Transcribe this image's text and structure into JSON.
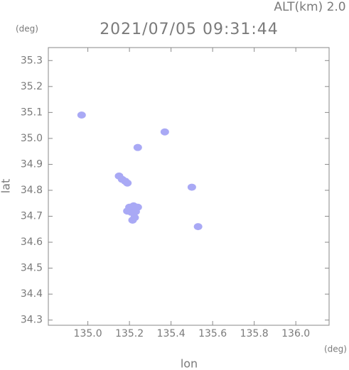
{
  "chart_data": {
    "type": "scatter",
    "title": "2021/07/05 09:31:44",
    "subtitle": "ALT(km) 2.0",
    "x_label": "lon",
    "y_label": "lat",
    "x_unit": "(deg)",
    "y_unit": "(deg)",
    "xlim": [
      134.81,
      136.16
    ],
    "ylim": [
      34.28,
      35.35
    ],
    "xticks": [
      {
        "value": 135.0,
        "label": "135.0"
      },
      135.2,
      135.4,
      135.6,
      135.8,
      {
        "value": 136.0,
        "label": "136.0"
      }
    ],
    "yticks": [
      34.3,
      34.4,
      34.5,
      34.6,
      34.7,
      34.8,
      34.9,
      {
        "value": 35.0,
        "label": "35.0"
      },
      35.1,
      35.2,
      35.3
    ],
    "color": "#a9a9f5",
    "x": [
      134.97,
      135.37,
      135.24,
      135.15,
      135.165,
      135.18,
      135.19,
      135.5,
      135.2,
      135.22,
      135.24,
      135.19,
      135.21,
      135.23,
      135.225,
      135.215,
      135.53
    ],
    "y": [
      35.09,
      35.025,
      34.965,
      34.855,
      34.842,
      34.835,
      34.828,
      34.812,
      34.735,
      34.74,
      34.735,
      34.72,
      34.715,
      34.718,
      34.695,
      34.685,
      34.66
    ]
  }
}
